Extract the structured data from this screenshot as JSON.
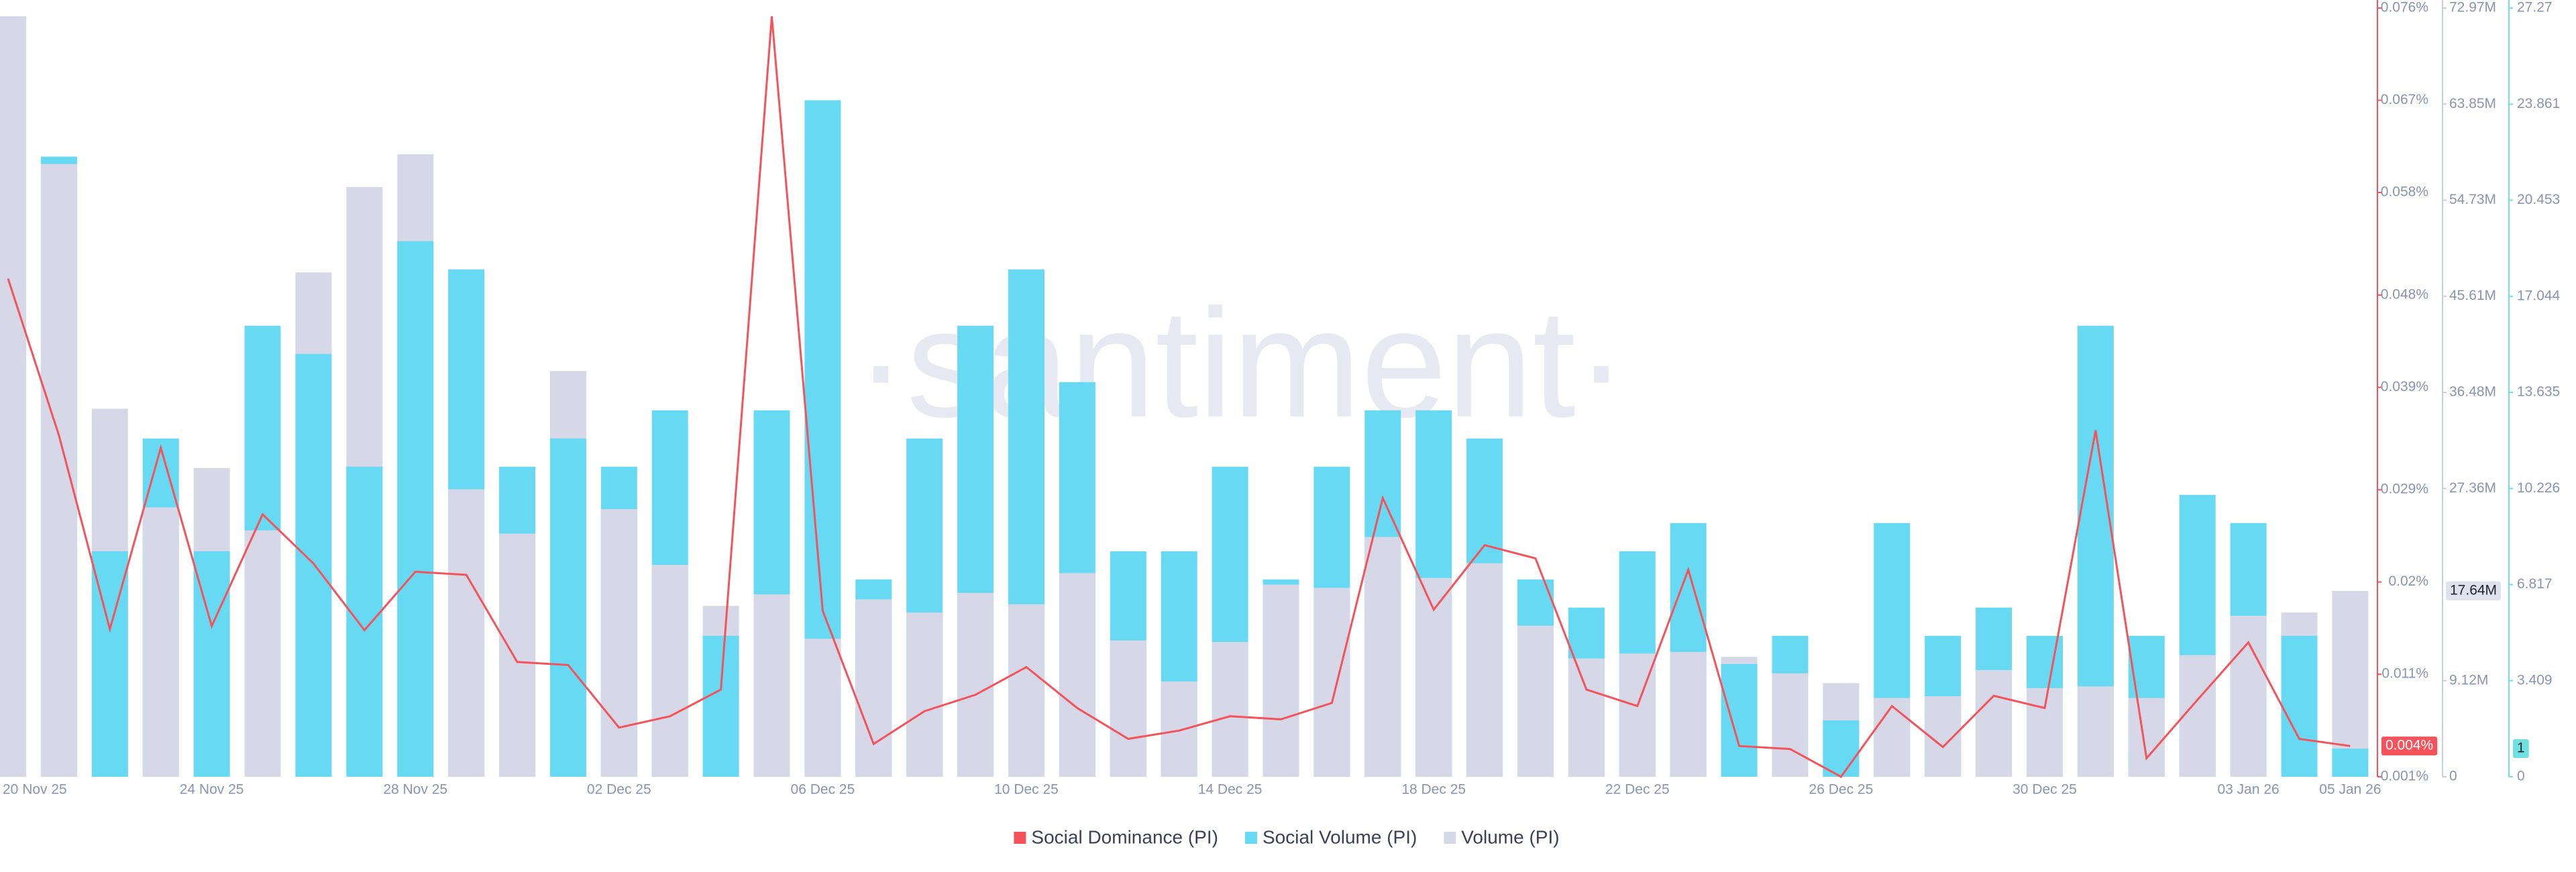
{
  "chart_data": {
    "type": "bar",
    "watermark": "·santiment·",
    "categories": [
      "20 Nov 25",
      null,
      null,
      null,
      "24 Nov 25",
      null,
      null,
      null,
      "28 Nov 25",
      null,
      null,
      null,
      "02 Dec 25",
      null,
      null,
      null,
      "06 Dec 25",
      null,
      null,
      null,
      "10 Dec 25",
      null,
      null,
      null,
      "14 Dec 25",
      null,
      null,
      null,
      "18 Dec 25",
      null,
      null,
      null,
      "22 Dec 25",
      null,
      null,
      null,
      "26 Dec 25",
      null,
      null,
      null,
      "30 Dec 25",
      null,
      null,
      null,
      "03 Jan 26",
      null,
      "05 Jan 26"
    ],
    "series": [
      {
        "name": "Social Dominance (PI)",
        "type": "line",
        "axis": "y",
        "color": "#f5535b",
        "current_value_label": "0.004%",
        "values": [
          0.0496,
          0.0343,
          0.0154,
          0.0331,
          0.0157,
          0.0266,
          0.0218,
          0.0153,
          0.021,
          0.0207,
          0.0122,
          0.0119,
          0.0058,
          0.0069,
          0.0095,
          0.0752,
          0.0172,
          0.0042,
          0.0074,
          0.009,
          0.0117,
          0.0077,
          0.0047,
          0.0055,
          0.0069,
          0.0066,
          0.0082,
          0.0282,
          0.0173,
          0.0236,
          0.0223,
          0.0095,
          0.0079,
          0.0212,
          0.004,
          0.0037,
          0.001,
          0.0079,
          0.0039,
          0.0089,
          0.0077,
          0.0348,
          0.0028,
          0.0085,
          0.0141,
          0.0047,
          0.004
        ]
      },
      {
        "name": "Social Volume (PI)",
        "type": "bar",
        "axis": "y3",
        "color": "#68d9f2",
        "current_value_label": "1",
        "values": [
          0,
          22,
          8,
          12,
          8,
          16,
          15,
          11,
          19,
          18,
          11,
          12,
          11,
          13,
          5,
          13,
          24,
          7,
          12,
          16,
          18,
          14,
          8,
          8,
          11,
          7,
          11,
          13,
          13,
          12,
          7,
          6,
          8,
          9,
          4,
          5,
          2,
          9,
          5,
          6,
          5,
          16,
          5,
          10,
          9,
          5,
          1
        ]
      },
      {
        "name": "Volume (PI)",
        "type": "bar",
        "axis": "y2",
        "color": "#d6d8e7",
        "current_value_label": "17.64M",
        "values": [
          72190000,
          58160000,
          34930000,
          25570000,
          29310000,
          23390000,
          47870000,
          55980000,
          59090000,
          27290000,
          23080000,
          38510000,
          25410000,
          20110000,
          16220000,
          17310000,
          13100000,
          16840000,
          15590000,
          17460000,
          16370000,
          19330000,
          12940000,
          9040000,
          12790000,
          18240000,
          17930000,
          22760000,
          18870000,
          20270000,
          14340000,
          11230000,
          11690000,
          11850000,
          11380000,
          9820000,
          8890000,
          7480000,
          7640000,
          10130000,
          8420000,
          8580000,
          7480000,
          11540000,
          15280000,
          15590000,
          17640000
        ]
      }
    ],
    "ylim": [
      0.001,
      0.076
    ],
    "yticks": [
      {
        "value": 0.001,
        "label": "0.001%"
      },
      {
        "value": 0.011,
        "label": "0.011%"
      },
      {
        "value": 0.02,
        "label": "0.02%"
      },
      {
        "value": 0.029,
        "label": "0.029%"
      },
      {
        "value": 0.039,
        "label": "0.039%"
      },
      {
        "value": 0.048,
        "label": "0.048%"
      },
      {
        "value": 0.058,
        "label": "0.058%"
      },
      {
        "value": 0.067,
        "label": "0.067%"
      },
      {
        "value": 0.076,
        "label": "0.076%"
      }
    ],
    "y2lim": [
      0,
      72970000
    ],
    "y2ticks": [
      0,
      {
        "value": 9120000,
        "label": "9.12M"
      },
      {
        "value": 27360000,
        "label": "27.36M"
      },
      {
        "value": 36480000,
        "label": "36.48M"
      },
      {
        "value": 45610000,
        "label": "45.61M"
      },
      {
        "value": 54730000,
        "label": "54.73M"
      },
      {
        "value": 63850000,
        "label": "63.85M"
      },
      {
        "value": 72970000,
        "label": "72.97M"
      }
    ],
    "y3lim": [
      0,
      27.27
    ],
    "y3ticks": [
      0,
      3.409,
      6.817,
      10.226,
      13.635,
      17.044,
      20.453,
      23.861,
      27.27
    ]
  }
}
